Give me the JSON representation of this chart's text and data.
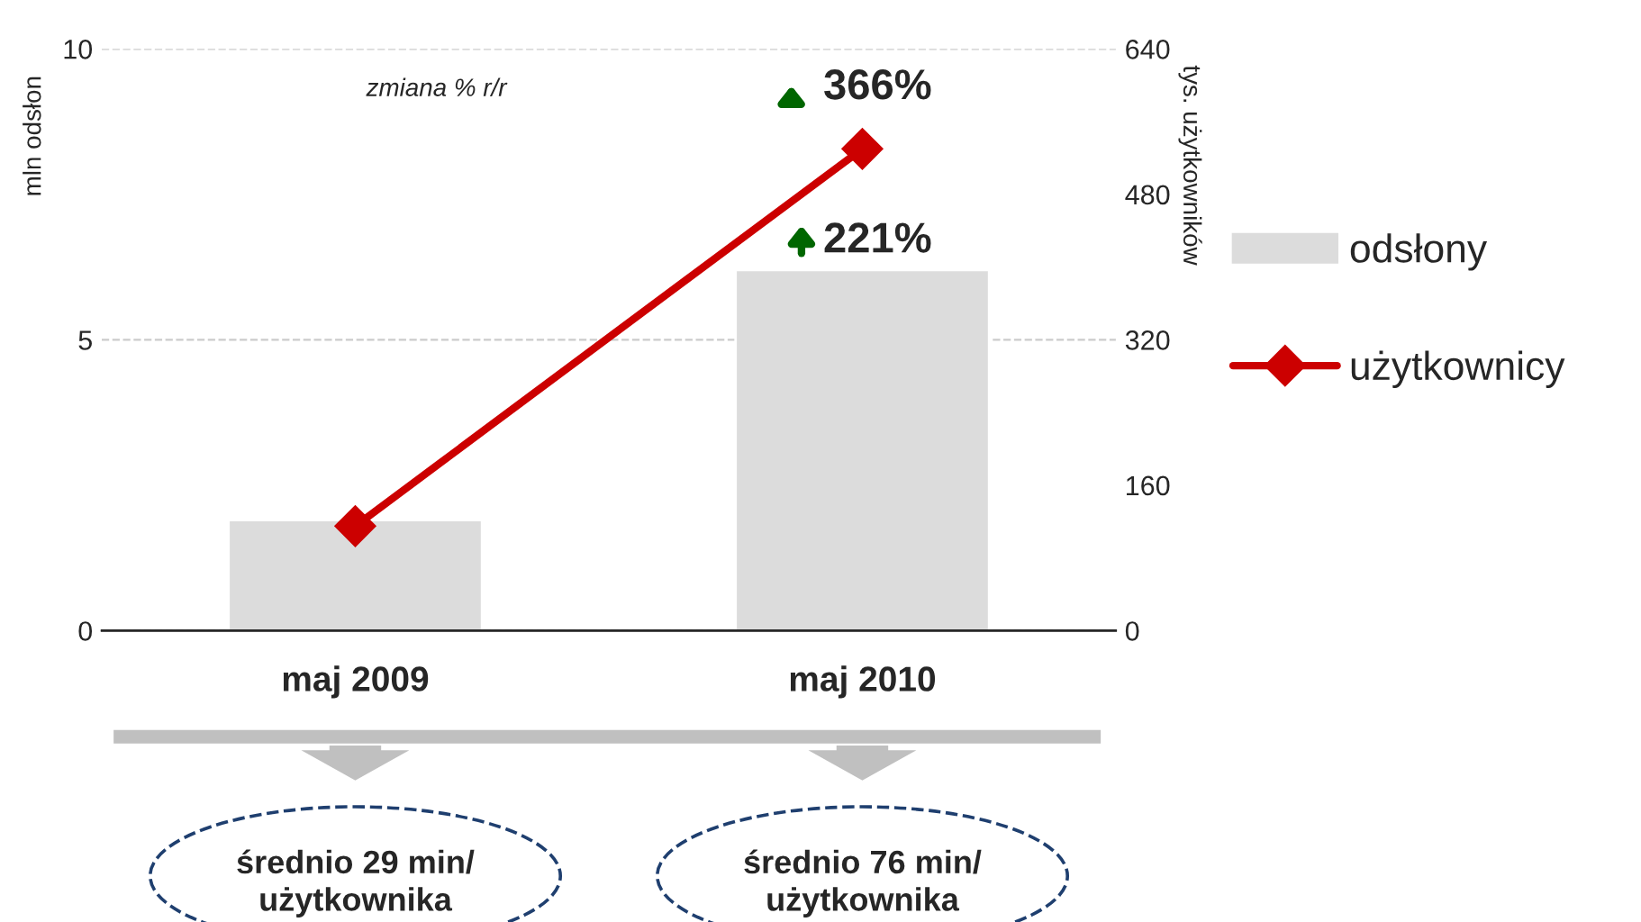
{
  "chart_data": {
    "type": "bar",
    "categories": [
      "maj 2009",
      "maj 2010"
    ],
    "series": [
      {
        "name": "odsłony",
        "color": "#dcdcdc",
        "values": [
          1.9,
          6.2
        ]
      },
      {
        "name": "użytkownicy",
        "type": "line",
        "axis": "y2",
        "color": "#cc0000",
        "marker": "diamond",
        "line_style": "solid",
        "values": [
          115,
          530
        ]
      }
    ],
    "ylabel": "mln odsłon",
    "y2label": "tys. użytkowników",
    "ylim": [
      0,
      10
    ],
    "yticks": [
      0,
      5,
      10
    ],
    "y2lim": [
      0,
      640
    ],
    "y2ticks": [
      0,
      160,
      320,
      480,
      640
    ],
    "grid": "y",
    "legend": "right",
    "annotations": [
      "zmiana % r/r",
      "366%",
      "221%",
      "średnio 29 min/\nużytkownika",
      "średnio 76 min/\nużytkownika"
    ]
  }
}
